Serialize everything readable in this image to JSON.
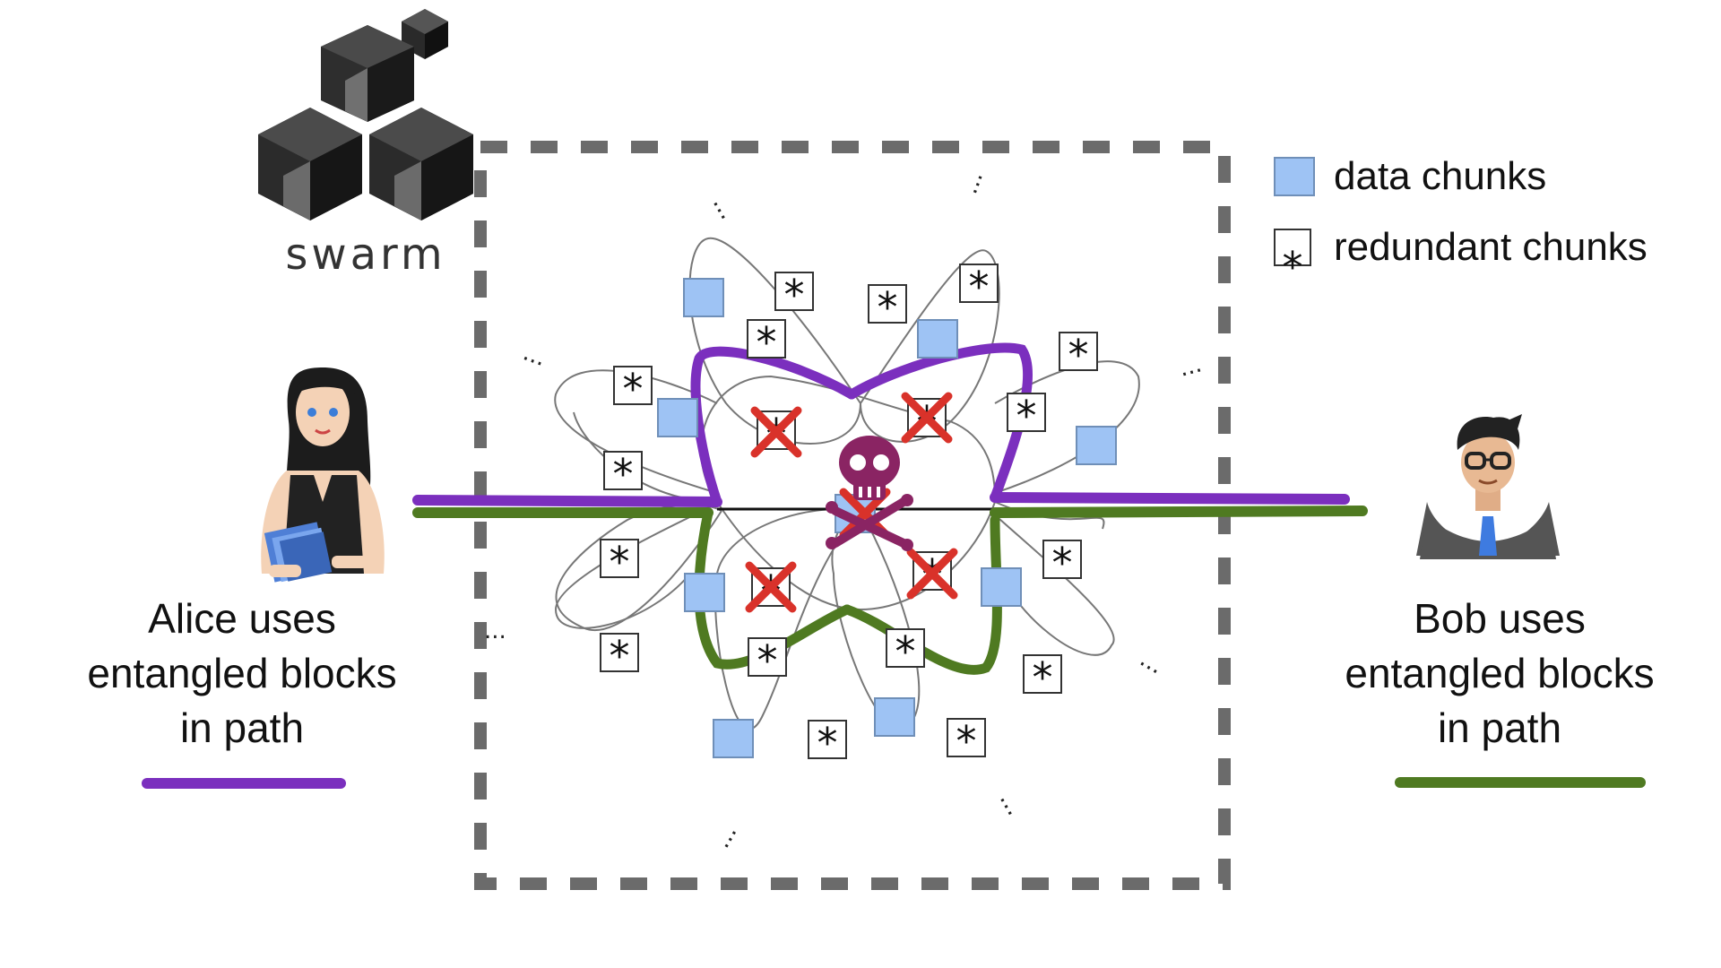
{
  "logo": {
    "text": "swarm"
  },
  "legend": {
    "items": [
      {
        "label": "data chunks",
        "icon": "blue-square-icon",
        "color": "#9ec3f4"
      },
      {
        "label": "redundant chunks",
        "icon": "asterisk-box-icon",
        "symbol": "*"
      }
    ]
  },
  "alice": {
    "caption_lines": [
      "Alice uses",
      "entangled blocks",
      "in path"
    ],
    "path_color": "#7b2fbe"
  },
  "bob": {
    "caption_lines": [
      "Bob uses",
      "entangled blocks",
      "in path"
    ],
    "path_color": "#4f7a21"
  },
  "colors": {
    "data_chunk_fill": "#9ec3f4",
    "data_chunk_stroke": "#6f8fb8",
    "boundary": "#6b6b6b",
    "cross": "#d9322a",
    "skull": "#8a2463",
    "alice_path": "#7b2fbe",
    "bob_path": "#4f7a21"
  },
  "symbols": {
    "asterisk": "*",
    "ellipsis": "..."
  }
}
